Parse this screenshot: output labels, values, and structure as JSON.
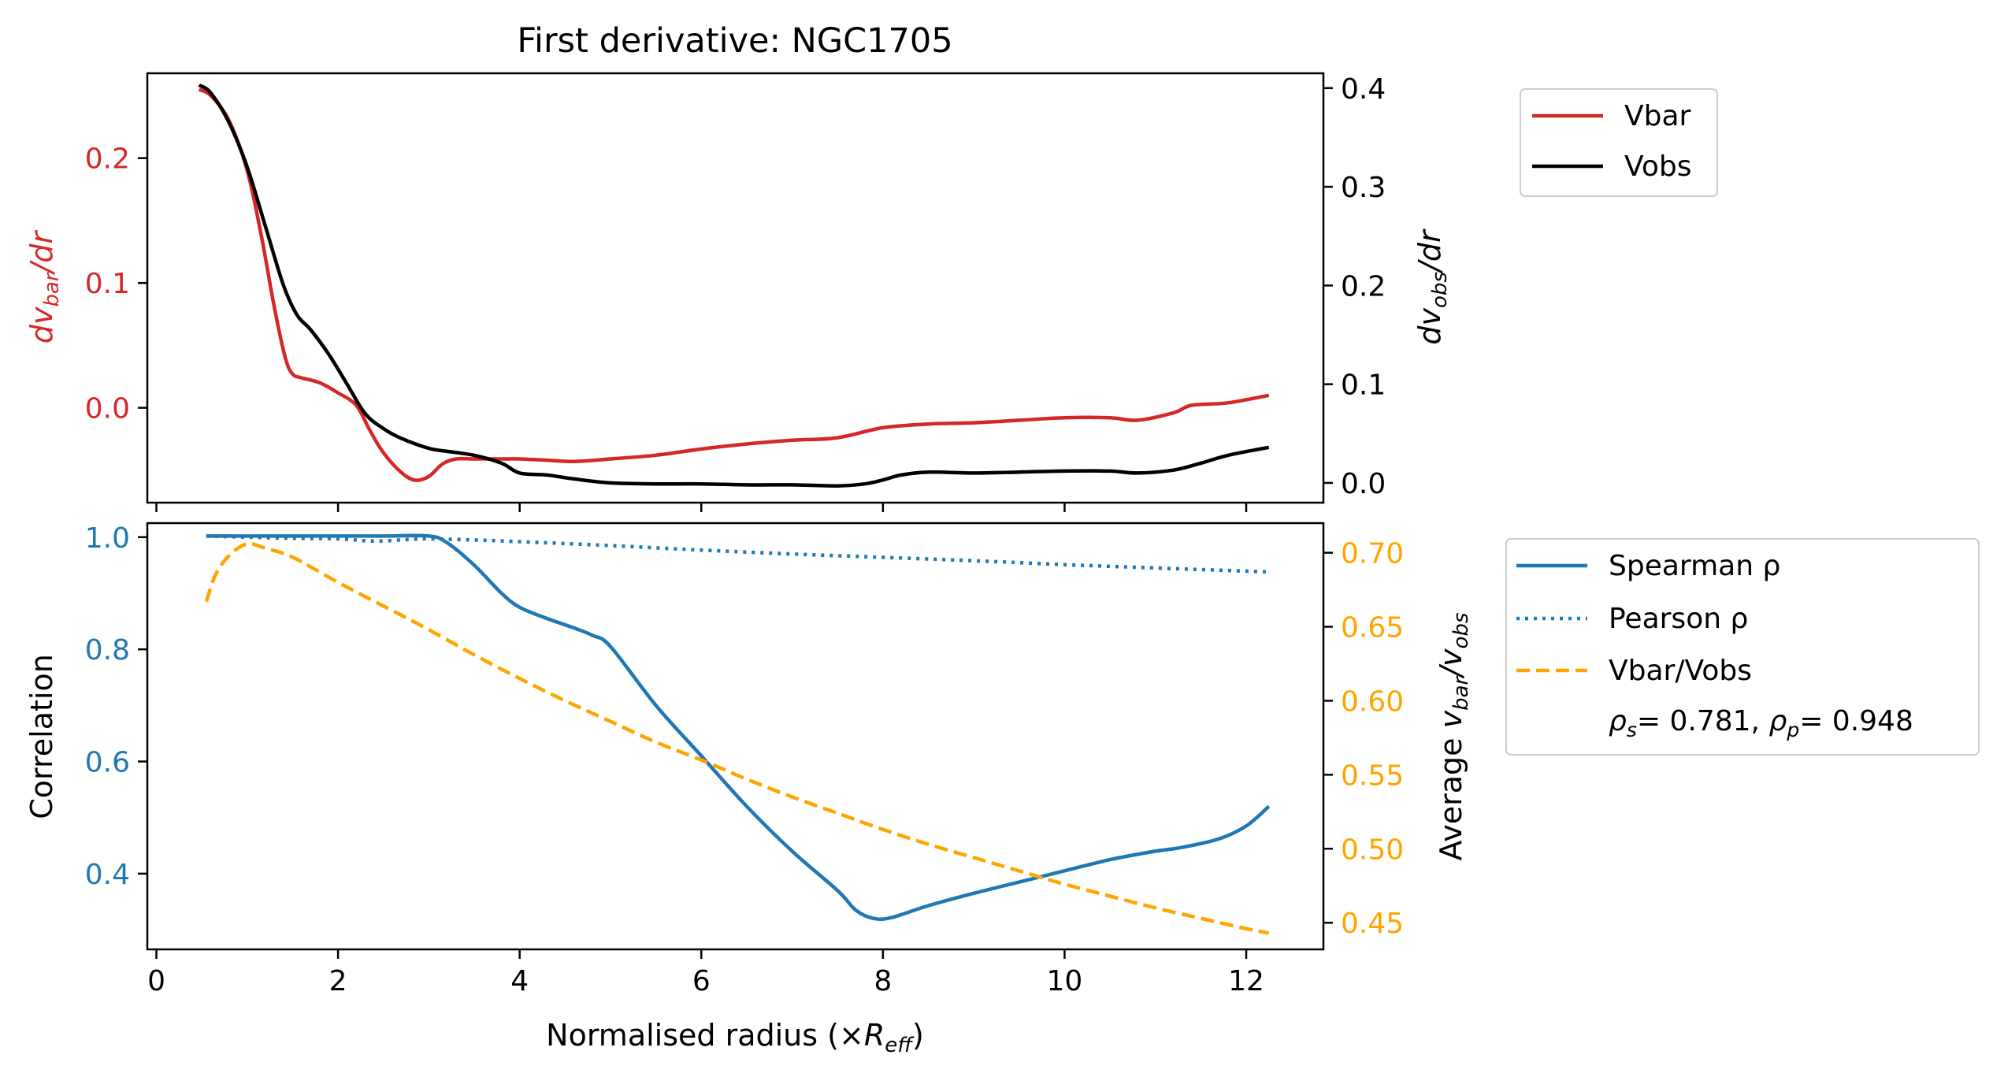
{
  "chart_data": [
    {
      "type": "line",
      "title": "First derivative: NGC1705",
      "xlabel": "",
      "x_ticks": [
        "0",
        "2",
        "4",
        "6",
        "8",
        "10",
        "12"
      ],
      "xlim": [
        -0.1,
        12.85
      ],
      "ylabel_left": {
        "prefix": "dv",
        "sub": "bar",
        "suffix": "/dr"
      },
      "ylabel_right": {
        "prefix": "dv",
        "sub": "obs",
        "suffix": "/dr"
      },
      "ylim_left": [
        -0.076,
        0.268
      ],
      "ylim_right": [
        -0.02,
        0.415
      ],
      "y_ticks_left": [
        "0.0",
        "0.1",
        "0.2"
      ],
      "y_ticks_right": [
        "0.0",
        "0.1",
        "0.2",
        "0.3",
        "0.4"
      ],
      "legend": [
        "Vbar",
        "Vobs"
      ],
      "legend_placement": "outside top-right",
      "colors": {
        "Vbar": "#d62728",
        "Vobs": "#000000"
      },
      "series": [
        {
          "name": "Vbar",
          "axis": "left",
          "x": [
            0.47,
            0.6,
            0.8,
            1.0,
            1.15,
            1.3,
            1.42,
            1.5,
            1.6,
            1.8,
            2.0,
            2.2,
            2.35,
            2.5,
            2.7,
            2.85,
            3.0,
            3.15,
            3.3,
            3.5,
            3.8,
            4.0,
            4.3,
            4.6,
            5.0,
            5.5,
            6.0,
            6.5,
            7.0,
            7.5,
            8.0,
            8.5,
            9.0,
            9.5,
            10.0,
            10.5,
            10.8,
            11.2,
            11.4,
            11.8,
            12.25
          ],
          "y": [
            0.255,
            0.25,
            0.23,
            0.19,
            0.14,
            0.08,
            0.04,
            0.027,
            0.024,
            0.02,
            0.012,
            0.002,
            -0.018,
            -0.036,
            -0.052,
            -0.058,
            -0.055,
            -0.045,
            -0.041,
            -0.041,
            -0.041,
            -0.041,
            -0.042,
            -0.043,
            -0.041,
            -0.038,
            -0.033,
            -0.029,
            -0.026,
            -0.024,
            -0.016,
            -0.013,
            -0.012,
            -0.01,
            -0.008,
            -0.008,
            -0.01,
            -0.004,
            0.002,
            0.004,
            0.01
          ]
        },
        {
          "name": "Vobs",
          "axis": "right",
          "x": [
            0.47,
            0.6,
            0.8,
            1.0,
            1.2,
            1.4,
            1.55,
            1.7,
            1.9,
            2.1,
            2.3,
            2.5,
            2.7,
            3.0,
            3.2,
            3.5,
            3.8,
            4.0,
            4.3,
            4.6,
            5.0,
            5.5,
            6.0,
            6.5,
            7.0,
            7.5,
            7.8,
            8.0,
            8.2,
            8.5,
            9.0,
            9.5,
            10.0,
            10.5,
            10.8,
            11.2,
            11.5,
            11.8,
            12.25
          ],
          "y": [
            0.403,
            0.395,
            0.365,
            0.32,
            0.26,
            0.2,
            0.17,
            0.155,
            0.13,
            0.1,
            0.07,
            0.055,
            0.045,
            0.035,
            0.032,
            0.028,
            0.02,
            0.01,
            0.008,
            0.004,
            0.0,
            -0.001,
            -0.001,
            -0.002,
            -0.002,
            -0.003,
            -0.001,
            0.003,
            0.008,
            0.011,
            0.01,
            0.011,
            0.012,
            0.012,
            0.01,
            0.013,
            0.02,
            0.028,
            0.036
          ]
        }
      ]
    },
    {
      "type": "line",
      "title": "",
      "xlabel": {
        "prefix": "Normalised radius (×",
        "var": "R",
        "sub": "eff",
        "suffix": ")"
      },
      "x_ticks": [
        "0",
        "2",
        "4",
        "6",
        "8",
        "10",
        "12"
      ],
      "xlim": [
        -0.1,
        12.85
      ],
      "ylabel_left": "Correlation",
      "ylabel_right": {
        "prefix": "Average ",
        "a": "v",
        "a_sub": "bar",
        "mid": "/",
        "b": "v",
        "b_sub": "obs"
      },
      "ylim_left": [
        0.265,
        1.025
      ],
      "ylim_right": [
        0.432,
        0.72
      ],
      "y_ticks_left": [
        "0.4",
        "0.6",
        "0.8",
        "1.0"
      ],
      "y_ticks_right": [
        "0.45",
        "0.50",
        "0.55",
        "0.60",
        "0.65",
        "0.70"
      ],
      "legend": [
        "Spearman ρ",
        "Pearson ρ",
        "Vbar/Vobs"
      ],
      "legend_note": {
        "rs_label": "ρ",
        "rs_sub": "s",
        "rs_value": "= 0.781, ",
        "rp_label": "ρ",
        "rp_sub": "p",
        "rp_value": "= 0.948"
      },
      "legend_placement": "outside right",
      "colors": {
        "Spearman ρ": "#1f77b4",
        "Pearson ρ": "#1f77b4",
        "Vbar/Vobs": "#ffa500"
      },
      "series": [
        {
          "name": "Spearman ρ",
          "axis": "left",
          "style": "solid",
          "x": [
            0.55,
            1.0,
            2.0,
            2.5,
            3.0,
            3.2,
            3.5,
            3.8,
            4.0,
            4.3,
            4.6,
            4.8,
            5.0,
            5.5,
            6.0,
            6.5,
            7.0,
            7.5,
            7.7,
            7.9,
            8.1,
            8.5,
            9.0,
            9.5,
            10.0,
            10.5,
            11.0,
            11.3,
            11.7,
            12.0,
            12.25
          ],
          "y": [
            1.002,
            1.002,
            1.002,
            1.002,
            1.002,
            0.99,
            0.95,
            0.9,
            0.875,
            0.855,
            0.838,
            0.825,
            0.805,
            0.7,
            0.61,
            0.52,
            0.44,
            0.37,
            0.335,
            0.32,
            0.322,
            0.343,
            0.365,
            0.385,
            0.405,
            0.425,
            0.44,
            0.447,
            0.462,
            0.485,
            0.52
          ]
        },
        {
          "name": "Pearson ρ",
          "axis": "left",
          "style": "dotted",
          "x": [
            0.55,
            1.0,
            1.5,
            2.0,
            2.4,
            2.8,
            3.0,
            3.5,
            4.0,
            5.0,
            6.0,
            7.0,
            8.0,
            9.0,
            10.0,
            11.0,
            12.25
          ],
          "y": [
            1.002,
            1.0,
            0.998,
            0.997,
            0.993,
            0.996,
            0.997,
            0.995,
            0.992,
            0.985,
            0.977,
            0.97,
            0.964,
            0.958,
            0.951,
            0.945,
            0.938
          ]
        },
        {
          "name": "Vbar/Vobs",
          "axis": "right",
          "style": "dashed",
          "x": [
            0.55,
            0.65,
            0.8,
            1.0,
            1.2,
            1.5,
            2.0,
            2.5,
            3.0,
            3.5,
            4.0,
            4.5,
            5.0,
            5.5,
            6.0,
            6.5,
            7.0,
            7.5,
            8.0,
            8.5,
            9.0,
            9.5,
            10.0,
            10.5,
            11.0,
            11.5,
            12.0,
            12.25
          ],
          "y": [
            0.667,
            0.685,
            0.698,
            0.706,
            0.703,
            0.697,
            0.68,
            0.664,
            0.648,
            0.631,
            0.615,
            0.6,
            0.586,
            0.572,
            0.56,
            0.547,
            0.535,
            0.524,
            0.513,
            0.503,
            0.494,
            0.485,
            0.476,
            0.468,
            0.46,
            0.453,
            0.446,
            0.443
          ]
        }
      ]
    }
  ]
}
